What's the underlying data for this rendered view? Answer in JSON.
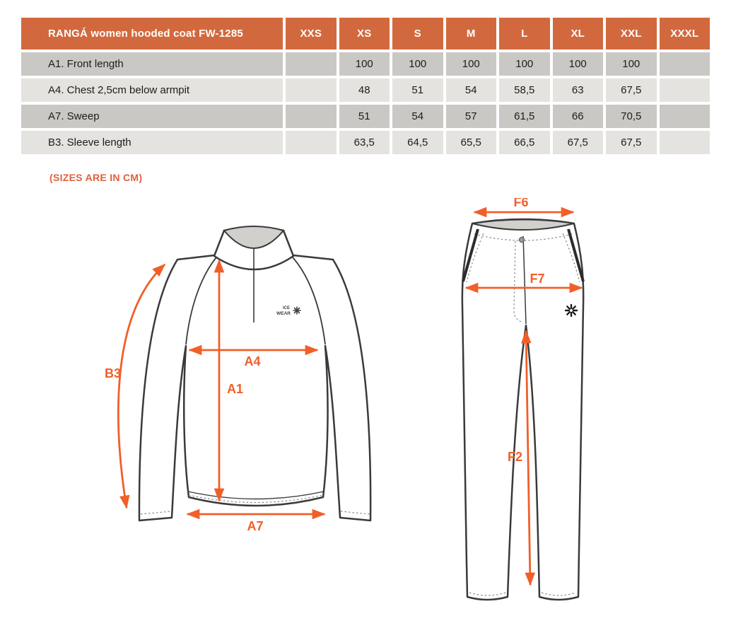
{
  "table": {
    "header": [
      "RANGÁ women hooded coat FW-1285",
      "XXS",
      "XS",
      "S",
      "M",
      "L",
      "XL",
      "XXL",
      "XXXL"
    ],
    "rows": [
      {
        "label": "A1. Front length",
        "values": [
          "",
          "100",
          "100",
          "100",
          "100",
          "100",
          "100",
          ""
        ]
      },
      {
        "label": "A4. Chest 2,5cm below armpit",
        "values": [
          "",
          "48",
          "51",
          "54",
          "58,5",
          "63",
          "67,5",
          ""
        ]
      },
      {
        "label": "A7. Sweep",
        "values": [
          "",
          "51",
          "54",
          "57",
          "61,5",
          "66",
          "70,5",
          ""
        ]
      },
      {
        "label": "B3. Sleeve length",
        "values": [
          "",
          "63,5",
          "64,5",
          "65,5",
          "66,5",
          "67,5",
          "67,5",
          ""
        ]
      }
    ]
  },
  "note": "(SIZES ARE IN CM)",
  "jacket": {
    "labels": {
      "b3": "B3",
      "a4": "A4",
      "a1": "A1",
      "a7": "A7"
    },
    "logo": {
      "line1": "ICE",
      "line2": "WEAR"
    }
  },
  "pants": {
    "labels": {
      "f6": "F6",
      "f7": "F7",
      "f2": "F2"
    }
  },
  "colors": {
    "header_orange": "#d2693e",
    "note_orange": "#e0603a",
    "arrow_orange": "#f15f29",
    "row_dark": "#cac8c5",
    "row_light": "#e4e3e0",
    "line_dark": "#3a3a3a",
    "fill_gray": "#d2d0cc"
  }
}
